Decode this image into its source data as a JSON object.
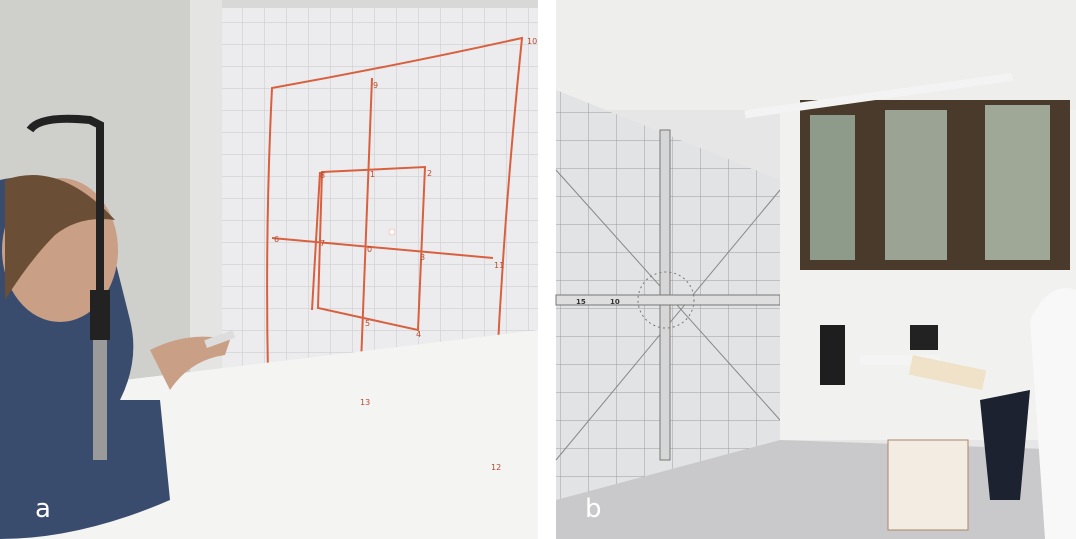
{
  "panels": [
    {
      "label": "a",
      "grid_labels": [
        "10",
        "9",
        "8",
        "1",
        "2",
        "6",
        "7",
        "0",
        "3",
        "11",
        "5",
        "4",
        "13",
        "12"
      ]
    },
    {
      "label": "b",
      "scale_labels": [
        "15",
        "10"
      ]
    }
  ]
}
